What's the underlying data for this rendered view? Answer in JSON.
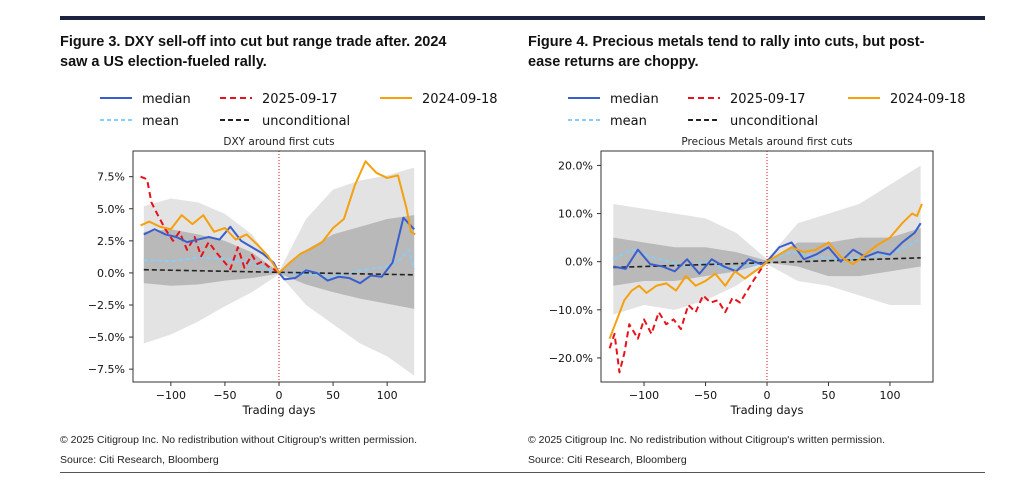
{
  "figures": [
    {
      "title_line1": "Figure 3. DXY sell-off into cut but range trade after. 2024",
      "title_line2": "saw a US election-fueled rally.",
      "copyright": "© 2025 Citigroup Inc. No redistribution without Citigroup's written permission.",
      "source": "Source: Citi Research, Bloomberg"
    },
    {
      "title_line1": "Figure 4. Precious metals tend to rally into cuts, but post-",
      "title_line2": "ease returns are choppy.",
      "copyright": "© 2025 Citigroup Inc. No redistribution without Citigroup's written permission.",
      "source": "Source: Citi Research, Bloomberg"
    }
  ],
  "legend": [
    {
      "label": "median",
      "color": "#3a5fcd",
      "dash": ""
    },
    {
      "label": "2025-09-17",
      "color": "#e8101a",
      "dash": "6,4"
    },
    {
      "label": "2024-09-18",
      "color": "#f5a00f",
      "dash": ""
    },
    {
      "label": "mean",
      "color": "#87cefa",
      "dash": "4,3"
    },
    {
      "label": "unconditional",
      "color": "#222222",
      "dash": "5,3"
    }
  ],
  "chart_data": [
    {
      "type": "line",
      "title": "DXY around first cuts",
      "xlabel": "Trading days",
      "ylabel": "",
      "xlim": [
        -135,
        135
      ],
      "ylim": [
        -8.5,
        9.5
      ],
      "xticks": [
        -100,
        -50,
        0,
        50,
        100
      ],
      "xtick_labels": [
        "−100",
        "−50",
        "0",
        "50",
        "100"
      ],
      "yticks": [
        7.5,
        5.0,
        2.5,
        0.0,
        -2.5,
        -5.0,
        -7.5
      ],
      "ytick_labels": [
        "7.5%",
        "5.0%",
        "2.5%",
        "0.0%",
        "−2.5%",
        "−5.0%",
        "−7.5%"
      ],
      "vline_x": 0,
      "bands": {
        "x": [
          -125,
          -100,
          -75,
          -50,
          -25,
          0,
          25,
          50,
          75,
          100,
          125
        ],
        "outer_upper": [
          5.2,
          5.8,
          5.5,
          4.6,
          3.0,
          0.1,
          4.2,
          6.5,
          7.2,
          7.6,
          8.2
        ],
        "outer_lower": [
          -5.5,
          -4.8,
          -3.8,
          -2.6,
          -1.5,
          -0.1,
          -2.5,
          -4.0,
          -5.5,
          -6.5,
          -8.0
        ],
        "inner_upper": [
          3.2,
          3.4,
          3.0,
          2.5,
          1.6,
          0.05,
          1.8,
          3.0,
          3.6,
          4.2,
          4.5
        ],
        "inner_lower": [
          -0.8,
          -1.0,
          -0.9,
          -0.6,
          -0.4,
          -0.05,
          -0.9,
          -1.5,
          -2.0,
          -2.4,
          -2.8
        ]
      },
      "series": [
        {
          "name": "median",
          "x": [
            -125,
            -115,
            -105,
            -95,
            -85,
            -75,
            -65,
            -55,
            -45,
            -35,
            -25,
            -15,
            -5,
            0,
            5,
            15,
            25,
            35,
            45,
            55,
            65,
            75,
            85,
            95,
            105,
            115,
            125
          ],
          "y": [
            3.0,
            3.4,
            3.0,
            2.8,
            2.4,
            2.6,
            2.8,
            2.6,
            3.6,
            2.5,
            2.0,
            1.5,
            0.8,
            0.0,
            -0.5,
            -0.4,
            0.2,
            0.0,
            -0.6,
            -0.3,
            -0.4,
            -0.8,
            -0.2,
            -0.3,
            0.8,
            4.3,
            3.4
          ]
        },
        {
          "name": "2025-09-17",
          "x": [
            -128,
            -122,
            -118,
            -112,
            -105,
            -98,
            -92,
            -85,
            -78,
            -72,
            -65,
            -58,
            -52,
            -45,
            -38,
            -32,
            -25,
            -20,
            -15,
            -10,
            -5,
            0
          ],
          "y": [
            7.5,
            7.3,
            5.5,
            4.5,
            3.4,
            2.5,
            3.2,
            1.8,
            2.8,
            1.3,
            2.4,
            1.6,
            1.0,
            0.3,
            2.0,
            0.4,
            1.4,
            0.7,
            0.9,
            0.5,
            0.3,
            0.0
          ]
        },
        {
          "name": "2024-09-18",
          "x": [
            -128,
            -120,
            -110,
            -100,
            -90,
            -80,
            -70,
            -60,
            -50,
            -40,
            -30,
            -20,
            -10,
            0,
            10,
            20,
            30,
            40,
            50,
            60,
            70,
            80,
            90,
            100,
            110,
            118,
            122,
            126
          ],
          "y": [
            3.7,
            4.0,
            3.6,
            3.4,
            4.5,
            3.8,
            4.5,
            3.2,
            3.5,
            2.6,
            3.0,
            2.2,
            1.3,
            0.0,
            0.8,
            1.5,
            1.9,
            2.4,
            3.5,
            4.2,
            6.8,
            8.7,
            7.8,
            7.4,
            7.6,
            5.0,
            3.2,
            3.0
          ]
        },
        {
          "name": "mean",
          "x": [
            -125,
            -100,
            -75,
            -50,
            -25,
            0,
            25,
            50,
            75,
            100,
            110,
            120,
            125
          ],
          "y": [
            1.0,
            0.9,
            1.2,
            1.1,
            0.7,
            0.0,
            -0.1,
            -0.3,
            0.2,
            0.5,
            0.9,
            1.8,
            0.3
          ]
        },
        {
          "name": "unconditional",
          "x": [
            -125,
            125
          ],
          "y": [
            0.25,
            -0.15
          ]
        }
      ]
    },
    {
      "type": "line",
      "title": "Precious Metals around first cuts",
      "xlabel": "Trading days",
      "ylabel": "",
      "xlim": [
        -135,
        135
      ],
      "ylim": [
        -25,
        23
      ],
      "xticks": [
        -100,
        -50,
        0,
        50,
        100
      ],
      "xtick_labels": [
        "−100",
        "−50",
        "0",
        "50",
        "100"
      ],
      "yticks": [
        20,
        10,
        0,
        -10,
        -20
      ],
      "ytick_labels": [
        "20.0%",
        "10.0%",
        "0.0%",
        "−10.0%",
        "−20.0%"
      ],
      "vline_x": 0,
      "bands": {
        "x": [
          -125,
          -100,
          -75,
          -50,
          -25,
          0,
          25,
          50,
          75,
          100,
          125
        ],
        "outer_upper": [
          12,
          11,
          10,
          9,
          6,
          0.5,
          8,
          10,
          12,
          16,
          20
        ],
        "outer_lower": [
          -11,
          -9,
          -10,
          -8,
          -5,
          -0.5,
          -4,
          -5,
          -7,
          -9,
          -9
        ],
        "inner_upper": [
          5,
          4,
          3,
          3,
          2,
          0.2,
          4,
          4,
          5,
          5,
          7
        ],
        "inner_lower": [
          -5,
          -4,
          -4,
          -3,
          -2,
          -0.2,
          -1,
          -3,
          -3,
          -2,
          -1
        ]
      },
      "series": [
        {
          "name": "median",
          "x": [
            -125,
            -115,
            -105,
            -95,
            -85,
            -75,
            -65,
            -55,
            -45,
            -35,
            -25,
            -15,
            -5,
            0,
            10,
            20,
            30,
            40,
            50,
            60,
            70,
            80,
            90,
            100,
            110,
            120,
            125
          ],
          "y": [
            -1.0,
            -1.5,
            2.5,
            -0.5,
            -1.0,
            -2.0,
            0.5,
            -2.5,
            0.5,
            -1.0,
            -2.0,
            0.5,
            -0.5,
            0.0,
            3.0,
            4.0,
            0.5,
            1.5,
            3.0,
            0.0,
            2.5,
            1.0,
            2.0,
            1.5,
            4.0,
            6.0,
            8.0
          ]
        },
        {
          "name": "2025-09-17",
          "x": [
            -128,
            -124,
            -120,
            -116,
            -112,
            -105,
            -100,
            -94,
            -88,
            -82,
            -76,
            -70,
            -64,
            -58,
            -52,
            -46,
            -40,
            -34,
            -28,
            -22,
            -16,
            -10,
            -6,
            -2,
            0
          ],
          "y": [
            -18.0,
            -15.0,
            -23.0,
            -19.0,
            -13.0,
            -16.0,
            -12.0,
            -15.0,
            -10.5,
            -13.0,
            -12.0,
            -14.0,
            -9.0,
            -10.5,
            -7.0,
            -8.5,
            -8.0,
            -10.5,
            -7.5,
            -8.5,
            -6.0,
            -3.5,
            -2.0,
            -0.5,
            0.0
          ]
        },
        {
          "name": "2024-09-18",
          "x": [
            -128,
            -122,
            -116,
            -110,
            -104,
            -98,
            -90,
            -82,
            -74,
            -66,
            -58,
            -50,
            -42,
            -34,
            -26,
            -18,
            -10,
            -4,
            0,
            10,
            20,
            30,
            40,
            50,
            60,
            70,
            80,
            90,
            100,
            110,
            118,
            122,
            126
          ],
          "y": [
            -16.0,
            -12.0,
            -8.0,
            -6.0,
            -5.0,
            -6.5,
            -5.0,
            -4.5,
            -6.0,
            -3.0,
            -5.0,
            -4.0,
            -2.5,
            -5.0,
            -2.0,
            -3.5,
            -2.0,
            -1.0,
            0.0,
            1.5,
            3.0,
            2.0,
            2.5,
            4.0,
            1.0,
            -0.5,
            1.5,
            3.5,
            5.0,
            8.0,
            10.0,
            9.5,
            12.0
          ]
        },
        {
          "name": "mean",
          "x": [
            -125,
            -110,
            -95,
            -80,
            -65,
            -50,
            -35,
            -20,
            -5,
            0,
            20,
            40,
            60,
            80,
            100,
            120,
            125
          ],
          "y": [
            0.5,
            2.5,
            1.0,
            0.0,
            -1.0,
            0.0,
            -1.5,
            -1.0,
            -0.5,
            0.0,
            2.0,
            1.0,
            0.5,
            1.0,
            1.5,
            4.0,
            5.0
          ]
        },
        {
          "name": "unconditional",
          "x": [
            -125,
            125
          ],
          "y": [
            -1.2,
            0.8
          ]
        }
      ]
    }
  ]
}
